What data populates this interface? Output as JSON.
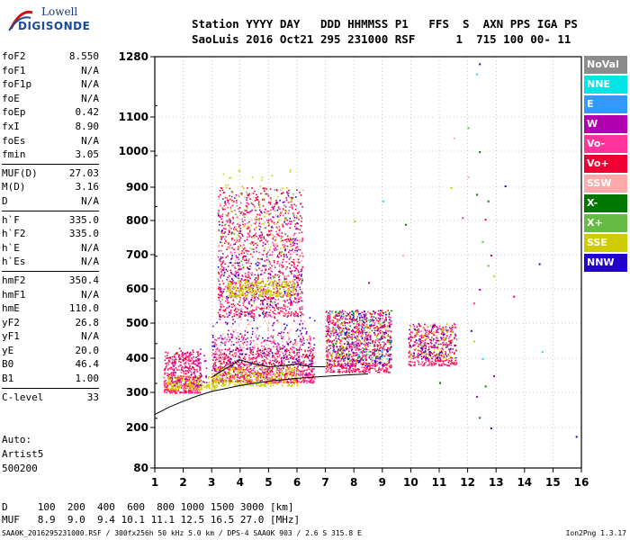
{
  "logo": {
    "line1": "Lowell",
    "line2": "DIGISONDE"
  },
  "header": {
    "line1": "Station YYYY DAY   DDD HHMMSS P1   FFS  S  AXN PPS IGA PS",
    "line2": "SaoLuis 2016 Oct21 295 231000 RSF      1  715 100 00- 11"
  },
  "params": {
    "group1": [
      {
        "name": "foF2",
        "value": "8.550"
      },
      {
        "name": "foF1",
        "value": "N/A"
      },
      {
        "name": "foF1p",
        "value": "N/A"
      },
      {
        "name": "foE",
        "value": "N/A"
      },
      {
        "name": "foEp",
        "value": "0.42"
      },
      {
        "name": "fxI",
        "value": "8.90"
      },
      {
        "name": "foEs",
        "value": "N/A"
      },
      {
        "name": "fmin",
        "value": "3.05"
      }
    ],
    "group2": [
      {
        "name": "MUF(D)",
        "value": "27.03"
      },
      {
        "name": "M(D)",
        "value": "3.16"
      },
      {
        "name": "D",
        "value": "N/A"
      }
    ],
    "group3": [
      {
        "name": "h`F",
        "value": "335.0"
      },
      {
        "name": "h`F2",
        "value": "335.0"
      },
      {
        "name": "h`E",
        "value": "N/A"
      },
      {
        "name": "h`Es",
        "value": "N/A"
      }
    ],
    "group4": [
      {
        "name": "hmF2",
        "value": "350.4"
      },
      {
        "name": "hmF1",
        "value": "N/A"
      },
      {
        "name": "hmE",
        "value": "110.0"
      },
      {
        "name": "yF2",
        "value": "26.8"
      },
      {
        "name": "yF1",
        "value": "N/A"
      },
      {
        "name": "yE",
        "value": "20.0"
      },
      {
        "name": "B0",
        "value": "46.4"
      },
      {
        "name": "B1",
        "value": "1.00"
      }
    ],
    "group5": [
      {
        "name": "C-level",
        "value": "33"
      }
    ]
  },
  "auto": {
    "line1": "Auto:",
    "line2": "Artist5",
    "line3": "500200"
  },
  "legend": [
    {
      "label": "NoVal",
      "color": "#8c8c8c"
    },
    {
      "label": "NNE",
      "color": "#00e6e6"
    },
    {
      "label": "E",
      "color": "#3399ff"
    },
    {
      "label": "W",
      "color": "#b000b0"
    },
    {
      "label": "Vo-",
      "color": "#ff3399"
    },
    {
      "label": "Vo+",
      "color": "#ee0033"
    },
    {
      "label": "SSW",
      "color": "#ffaaaa"
    },
    {
      "label": "X-",
      "color": "#007700"
    },
    {
      "label": "X+",
      "color": "#66bb44"
    },
    {
      "label": "SSE",
      "color": "#cccc00"
    },
    {
      "label": "NNW",
      "color": "#2200cc"
    }
  ],
  "table": {
    "d_row": "D     100  200  400  600  800 1000 1500 3000 [km]",
    "muf_row": "MUF   8.9  9.0  9.4 10.1 11.1 12.5 16.5 27.0 [MHz]"
  },
  "footer": {
    "text": "SAA0K_2016295231000.RSF / 300fx256h 50 kHz 5.0 km / DPS-4 SAA0K 903 / 2.6 S 315.8 E",
    "version": "Ion2Png 1.3.17"
  },
  "chart_data": {
    "type": "scatter",
    "title": "",
    "xlabel": "",
    "ylabel": "",
    "x_ticks": [
      1,
      2,
      3,
      4,
      5,
      6,
      7,
      8,
      9,
      10,
      11,
      12,
      13,
      14,
      15,
      16
    ],
    "y_ticks": [
      80,
      200,
      300,
      400,
      500,
      600,
      700,
      800,
      900,
      1000,
      1100,
      1280
    ],
    "xlim": [
      1,
      16
    ],
    "ylim": [
      80,
      1280
    ],
    "y_scale": "nonlinear",
    "grid": "dotted",
    "legend_position": "right",
    "y_axis_frequencies": [
      0.92,
      1.11,
      1.24,
      1.39,
      1.55,
      1.72,
      1.91,
      2.1,
      2.29,
      2.48
    ],
    "profile_curve": {
      "x": [
        1.0,
        1.5,
        2.0,
        2.5,
        3.0,
        4.0,
        5.0,
        6.0,
        7.0,
        8.0,
        8.5
      ],
      "y": [
        237,
        258,
        275,
        290,
        303,
        320,
        333,
        341,
        347,
        352,
        354
      ]
    },
    "trace_curve": {
      "x": [
        3.0,
        3.3,
        3.6,
        4.0,
        4.5,
        5.0,
        5.5,
        6.0,
        6.5,
        7.0
      ],
      "y": [
        344,
        360,
        375,
        395,
        383,
        375,
        378,
        382,
        375,
        375
      ]
    },
    "clusters": [
      {
        "series": "Vo+",
        "x": [
          1.3,
          2.6
        ],
        "y": [
          300,
          420
        ],
        "n": 260
      },
      {
        "series": "Vo-",
        "x": [
          1.3,
          2.6
        ],
        "y": [
          300,
          420
        ],
        "n": 200
      },
      {
        "series": "SSE",
        "x": [
          1.4,
          3.2
        ],
        "y": [
          310,
          350
        ],
        "n": 180
      },
      {
        "series": "W",
        "x": [
          1.5,
          2.8
        ],
        "y": [
          320,
          430
        ],
        "n": 80
      },
      {
        "series": "Vo+",
        "x": [
          3.0,
          6.6
        ],
        "y": [
          330,
          430
        ],
        "n": 500
      },
      {
        "series": "Vo-",
        "x": [
          3.0,
          6.6
        ],
        "y": [
          330,
          470
        ],
        "n": 400
      },
      {
        "series": "SSE",
        "x": [
          3.0,
          6.0
        ],
        "y": [
          320,
          380
        ],
        "n": 300
      },
      {
        "series": "W",
        "x": [
          3.0,
          6.6
        ],
        "y": [
          350,
          520
        ],
        "n": 160
      },
      {
        "series": "NNW",
        "x": [
          3.0,
          6.6
        ],
        "y": [
          380,
          520
        ],
        "n": 100
      },
      {
        "series": "SSW",
        "x": [
          3.0,
          6.6
        ],
        "y": [
          350,
          520
        ],
        "n": 120
      },
      {
        "series": "Vo+",
        "x": [
          3.2,
          6.2
        ],
        "y": [
          520,
          900
        ],
        "n": 600
      },
      {
        "series": "Vo-",
        "x": [
          3.2,
          6.2
        ],
        "y": [
          520,
          860
        ],
        "n": 400
      },
      {
        "series": "W",
        "x": [
          3.2,
          6.2
        ],
        "y": [
          560,
          900
        ],
        "n": 200
      },
      {
        "series": "NNW",
        "x": [
          3.2,
          6.2
        ],
        "y": [
          520,
          880
        ],
        "n": 120
      },
      {
        "series": "SSW",
        "x": [
          3.2,
          6.2
        ],
        "y": [
          520,
          900
        ],
        "n": 150
      },
      {
        "series": "X+",
        "x": [
          3.2,
          6.2
        ],
        "y": [
          560,
          900
        ],
        "n": 80
      },
      {
        "series": "SSE",
        "x": [
          3.5,
          5.9
        ],
        "y": [
          580,
          625
        ],
        "n": 260
      },
      {
        "series": "SSE",
        "x": [
          3.3,
          5.8
        ],
        "y": [
          720,
          950
        ],
        "n": 90
      },
      {
        "series": "Vo+",
        "x": [
          7.0,
          9.3
        ],
        "y": [
          360,
          540
        ],
        "n": 450
      },
      {
        "series": "Vo-",
        "x": [
          7.0,
          9.3
        ],
        "y": [
          360,
          540
        ],
        "n": 320
      },
      {
        "series": "W",
        "x": [
          7.0,
          9.3
        ],
        "y": [
          380,
          540
        ],
        "n": 170
      },
      {
        "series": "NNW",
        "x": [
          7.0,
          9.3
        ],
        "y": [
          380,
          540
        ],
        "n": 120
      },
      {
        "series": "SSE",
        "x": [
          7.0,
          9.3
        ],
        "y": [
          380,
          540
        ],
        "n": 120
      },
      {
        "series": "X-",
        "x": [
          7.0,
          9.3
        ],
        "y": [
          400,
          540
        ],
        "n": 50
      },
      {
        "series": "NNE",
        "x": [
          7.0,
          9.3
        ],
        "y": [
          400,
          540
        ],
        "n": 40
      },
      {
        "series": "Vo+",
        "x": [
          9.9,
          11.6
        ],
        "y": [
          380,
          500
        ],
        "n": 200
      },
      {
        "series": "Vo-",
        "x": [
          9.9,
          11.6
        ],
        "y": [
          380,
          500
        ],
        "n": 130
      },
      {
        "series": "SSE",
        "x": [
          9.9,
          11.6
        ],
        "y": [
          400,
          500
        ],
        "n": 80
      },
      {
        "series": "W",
        "x": [
          9.9,
          11.6
        ],
        "y": [
          400,
          500
        ],
        "n": 60
      },
      {
        "series": "NNW",
        "x": [
          9.9,
          11.6
        ],
        "y": [
          400,
          500
        ],
        "n": 40
      }
    ],
    "isolated_points": [
      {
        "series": "X-",
        "x": 12.4,
        "y": 1000
      },
      {
        "series": "X-",
        "x": 12.3,
        "y": 880
      },
      {
        "series": "X-",
        "x": 12.7,
        "y": 860
      },
      {
        "series": "X-",
        "x": 12.6,
        "y": 320
      },
      {
        "series": "X-",
        "x": 12.4,
        "y": 230
      },
      {
        "series": "X-",
        "x": 11.0,
        "y": 330
      },
      {
        "series": "NNW",
        "x": 12.4,
        "y": 1260
      },
      {
        "series": "NNW",
        "x": 12.1,
        "y": 480
      },
      {
        "series": "NNW",
        "x": 12.8,
        "y": 200
      },
      {
        "series": "NNW",
        "x": 14.5,
        "y": 675
      },
      {
        "series": "NNW",
        "x": 15.8,
        "y": 175
      },
      {
        "series": "NNW",
        "x": 13.3,
        "y": 905
      },
      {
        "series": "NNE",
        "x": 12.3,
        "y": 1230
      },
      {
        "series": "NNE",
        "x": 14.6,
        "y": 420
      },
      {
        "series": "NNE",
        "x": 12.5,
        "y": 400
      },
      {
        "series": "Vo+",
        "x": 13.6,
        "y": 580
      },
      {
        "series": "Vo+",
        "x": 12.6,
        "y": 805
      },
      {
        "series": "Vo+",
        "x": 12.8,
        "y": 700
      },
      {
        "series": "Vo-",
        "x": 12.2,
        "y": 560
      },
      {
        "series": "Vo-",
        "x": 11.8,
        "y": 810
      },
      {
        "series": "Vo-",
        "x": 11.5,
        "y": 500
      },
      {
        "series": "SSE",
        "x": 11.4,
        "y": 900
      },
      {
        "series": "SSE",
        "x": 12.9,
        "y": 640
      },
      {
        "series": "SSE",
        "x": 12.2,
        "y": 450
      },
      {
        "series": "X+",
        "x": 12.5,
        "y": 740
      },
      {
        "series": "X+",
        "x": 12.7,
        "y": 670
      },
      {
        "series": "X+",
        "x": 12.0,
        "y": 1070
      },
      {
        "series": "W",
        "x": 12.9,
        "y": 350
      },
      {
        "series": "W",
        "x": 12.4,
        "y": 600
      },
      {
        "series": "W",
        "x": 12.3,
        "y": 290
      },
      {
        "series": "SSW",
        "x": 11.5,
        "y": 1040
      },
      {
        "series": "SSW",
        "x": 12.0,
        "y": 930
      },
      {
        "series": "X-",
        "x": 9.8,
        "y": 790
      },
      {
        "series": "NNE",
        "x": 9.0,
        "y": 860
      },
      {
        "series": "SSE",
        "x": 8.0,
        "y": 800
      },
      {
        "series": "Vo-",
        "x": 10.9,
        "y": 490
      },
      {
        "series": "W",
        "x": 8.5,
        "y": 620
      },
      {
        "series": "SSW",
        "x": 9.7,
        "y": 700
      }
    ]
  }
}
